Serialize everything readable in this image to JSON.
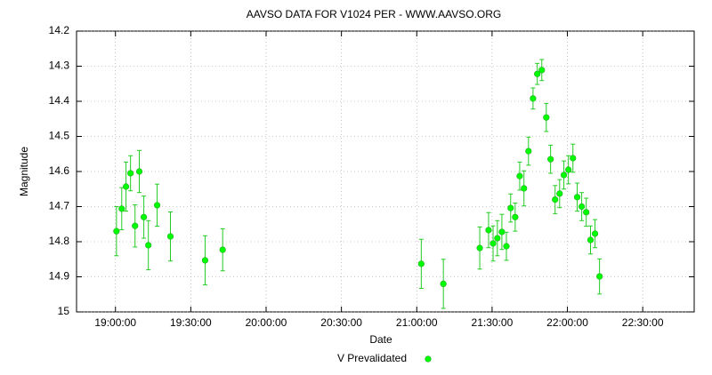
{
  "chart_data": {
    "type": "scatter",
    "title": "AAVSO DATA FOR V1024 PER - WWW.AAVSO.ORG",
    "x_label": "Date",
    "y_label": "Magnitude",
    "x": [
      1140.4,
      1142.5,
      1144.2,
      1146.0,
      1147.8,
      1149.5,
      1151.3,
      1153.1,
      1156.6,
      1161.9,
      1175.7,
      1182.7,
      1261.8,
      1270.6,
      1285.1,
      1288.6,
      1290.4,
      1292.1,
      1293.9,
      1295.7,
      1297.4,
      1299.2,
      1301.0,
      1302.7,
      1304.5,
      1306.3,
      1308.0,
      1309.8,
      1311.6,
      1313.3,
      1315.1,
      1316.9,
      1318.6,
      1320.4,
      1322.2,
      1323.9,
      1325.7,
      1327.5,
      1329.2,
      1331.0,
      1332.8
    ],
    "series": [
      {
        "name": "V Prevalidated",
        "color": "#00ff00",
        "values": [
          14.77,
          14.706,
          14.643,
          14.605,
          14.755,
          14.6,
          14.73,
          14.81,
          14.696,
          14.785,
          14.853,
          14.823,
          14.863,
          14.92,
          14.818,
          14.767,
          14.805,
          14.79,
          14.772,
          14.813,
          14.704,
          14.73,
          14.613,
          14.648,
          14.542,
          14.392,
          14.322,
          14.311,
          14.446,
          14.565,
          14.68,
          14.663,
          14.61,
          14.595,
          14.562,
          14.673,
          14.7,
          14.716,
          14.795,
          14.777,
          14.899
        ],
        "errors": [
          0.07,
          0.06,
          0.07,
          0.05,
          0.06,
          0.06,
          0.06,
          0.07,
          0.06,
          0.07,
          0.07,
          0.06,
          0.07,
          0.07,
          0.06,
          0.05,
          0.05,
          0.05,
          0.05,
          0.04,
          0.04,
          0.04,
          0.04,
          0.05,
          0.04,
          0.03,
          0.03,
          0.03,
          0.04,
          0.04,
          0.04,
          0.04,
          0.04,
          0.04,
          0.04,
          0.04,
          0.04,
          0.04,
          0.04,
          0.04,
          0.05
        ]
      }
    ],
    "xlim": [
      1124.5,
      1370.5
    ],
    "xticks": [
      {
        "value": 1140,
        "label": "19:00:00"
      },
      {
        "value": 1170,
        "label": "19:30:00"
      },
      {
        "value": 1200,
        "label": "20:00:00"
      },
      {
        "value": 1230,
        "label": "20:30:00"
      },
      {
        "value": 1260,
        "label": "21:00:00"
      },
      {
        "value": 1290,
        "label": "21:30:00"
      },
      {
        "value": 1320,
        "label": "22:00:00"
      },
      {
        "value": 1350,
        "label": "22:30:00"
      }
    ],
    "ylim": [
      14.2,
      15
    ],
    "y_reversed": true,
    "yticks": [
      14.2,
      14.3,
      14.4,
      14.5,
      14.6,
      14.7,
      14.8,
      14.9,
      15
    ],
    "grid": true
  }
}
